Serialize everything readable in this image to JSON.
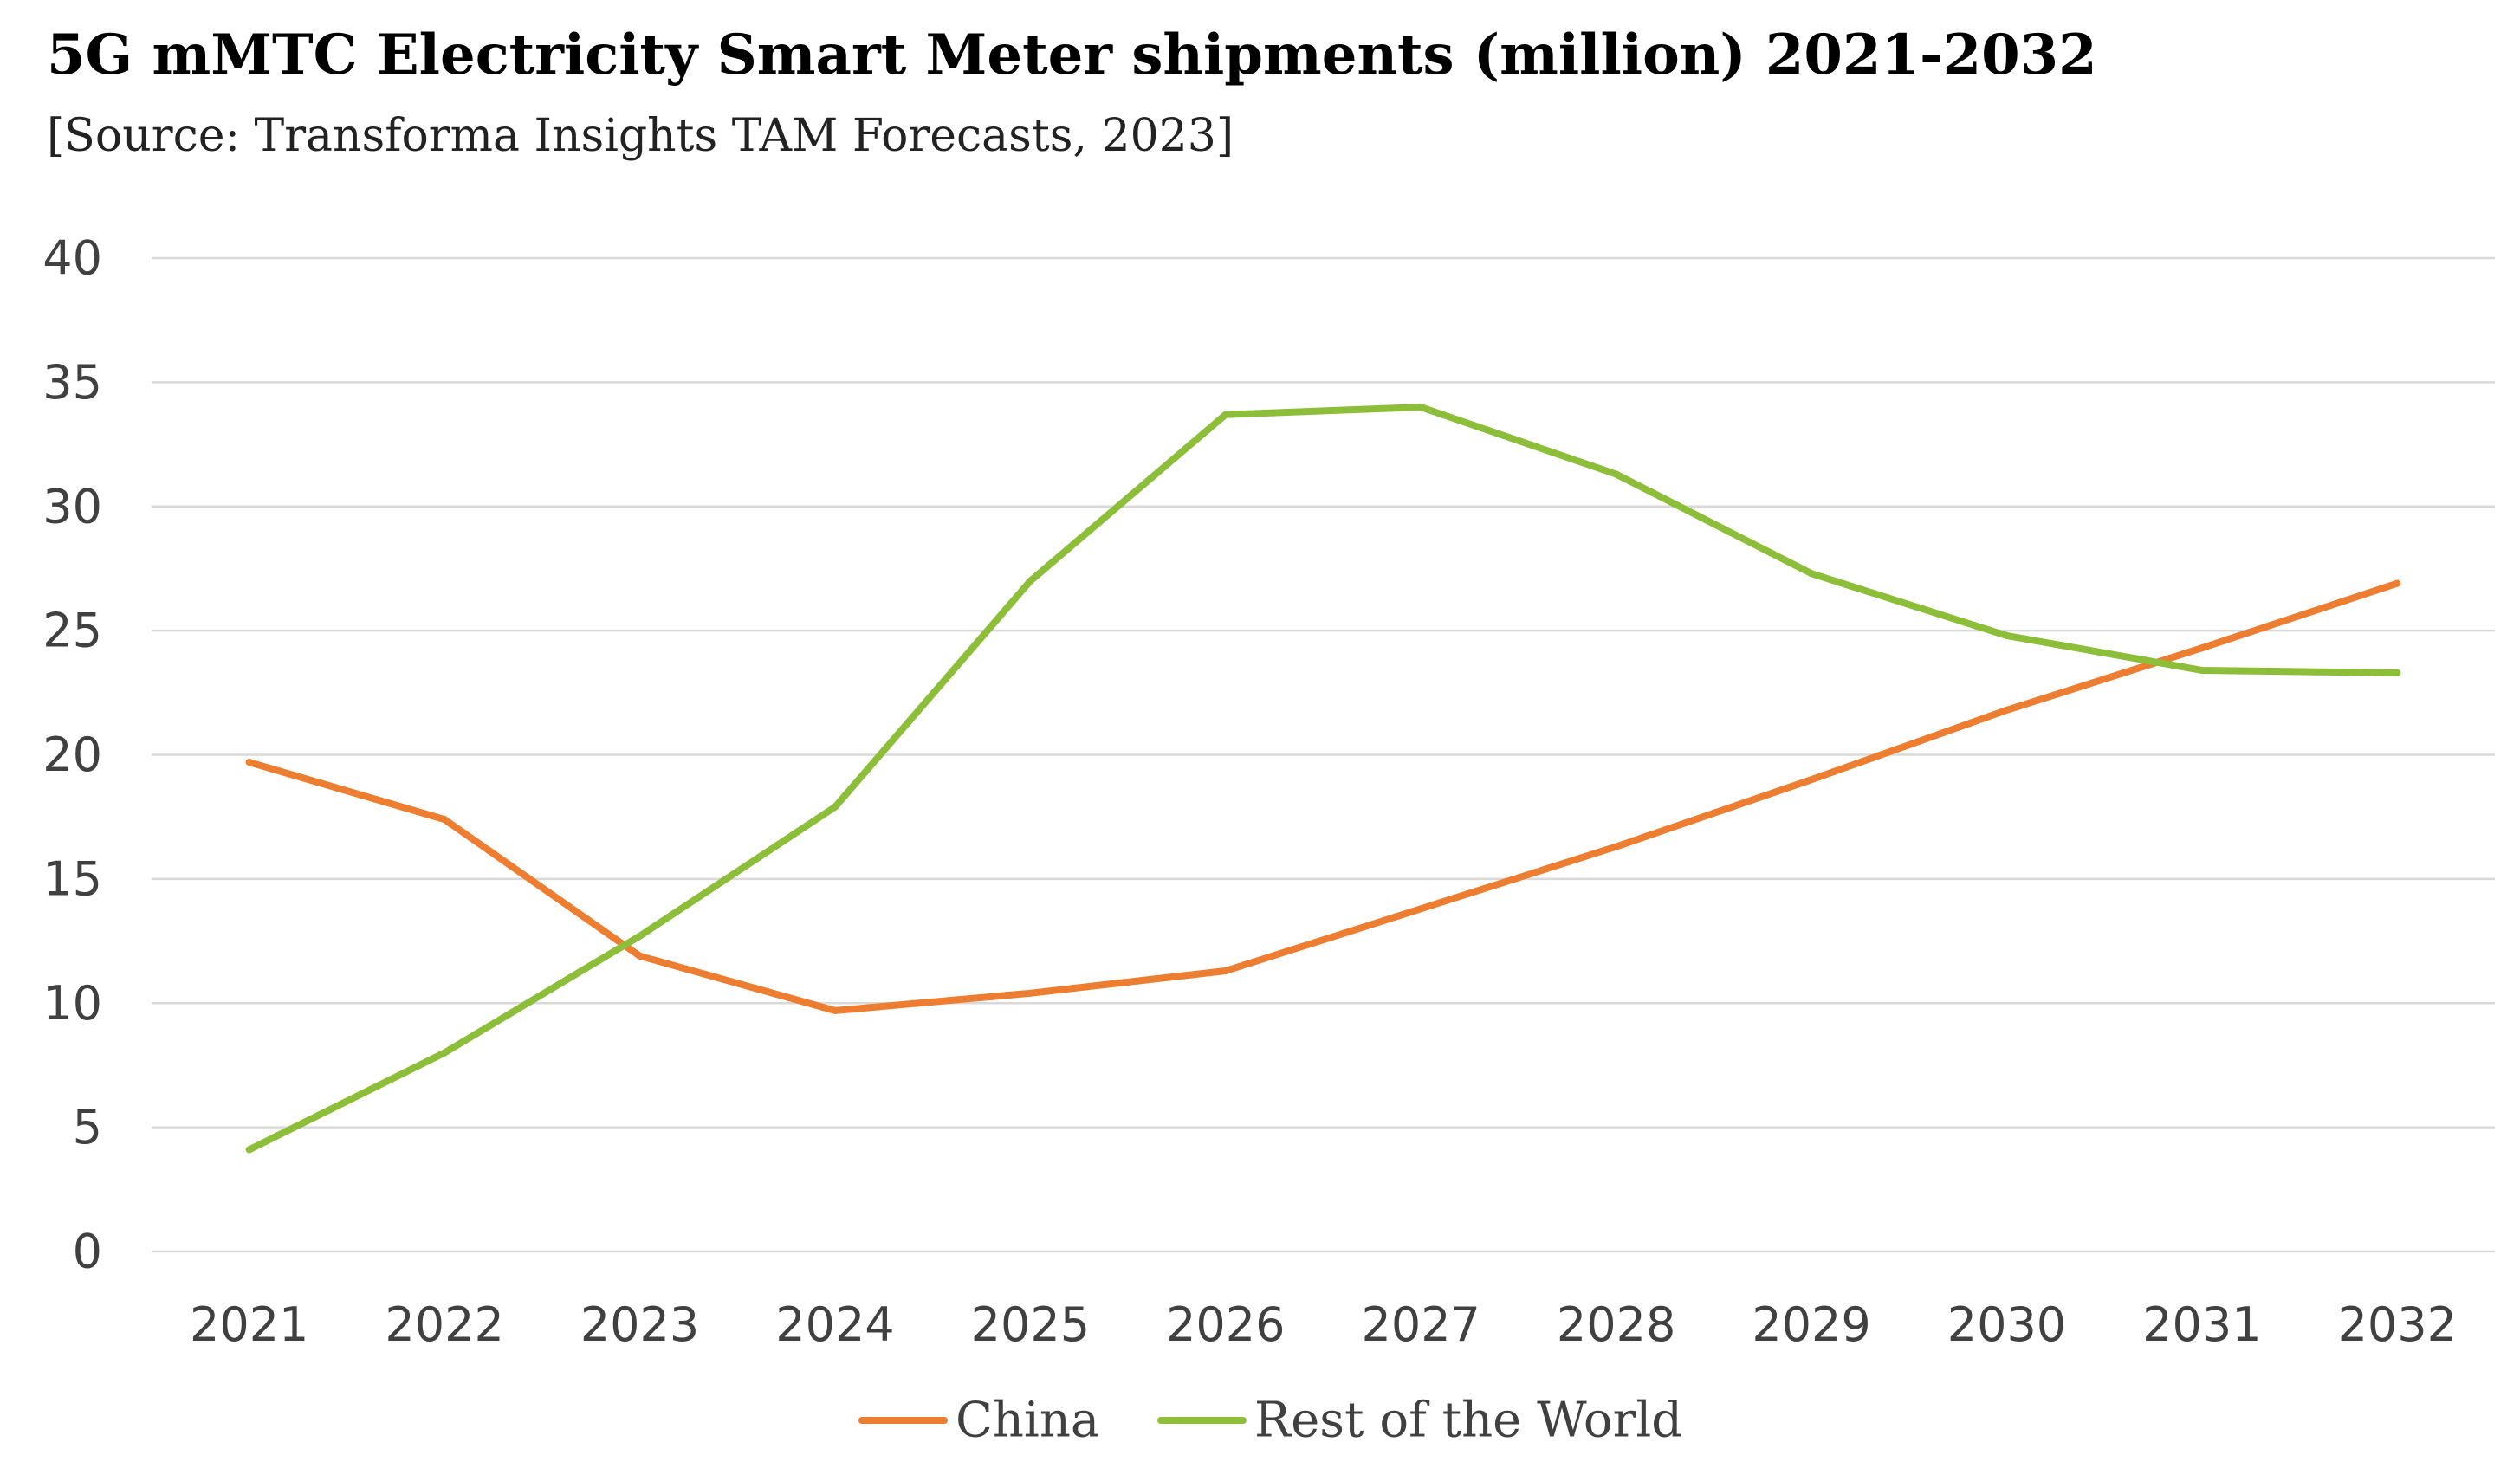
{
  "chart_data": {
    "type": "line",
    "title": "5G mMTC Electricity Smart Meter shipments (million) 2021-2032",
    "subtitle": "[Source: Transforma Insights TAM Forecasts, 2023]",
    "xlabel": "",
    "ylabel": "",
    "categories": [
      "2021",
      "2022",
      "2023",
      "2024",
      "2025",
      "2026",
      "2027",
      "2028",
      "2029",
      "2030",
      "2031",
      "2032"
    ],
    "ylim": [
      0,
      40
    ],
    "yticks": [
      0,
      5,
      10,
      15,
      20,
      25,
      30,
      35,
      40
    ],
    "grid": true,
    "legend_position": "bottom",
    "series": [
      {
        "name": "China",
        "color": "#ED7D31",
        "values": [
          19.7,
          17.4,
          11.9,
          9.7,
          10.4,
          11.3,
          13.8,
          16.3,
          19.0,
          21.8,
          24.3,
          26.9
        ]
      },
      {
        "name": "Rest of the World",
        "color": "#8DBE3A",
        "values": [
          4.1,
          8.0,
          12.7,
          17.9,
          27.0,
          33.7,
          34.0,
          31.3,
          27.3,
          24.8,
          23.4,
          23.3
        ]
      }
    ]
  }
}
